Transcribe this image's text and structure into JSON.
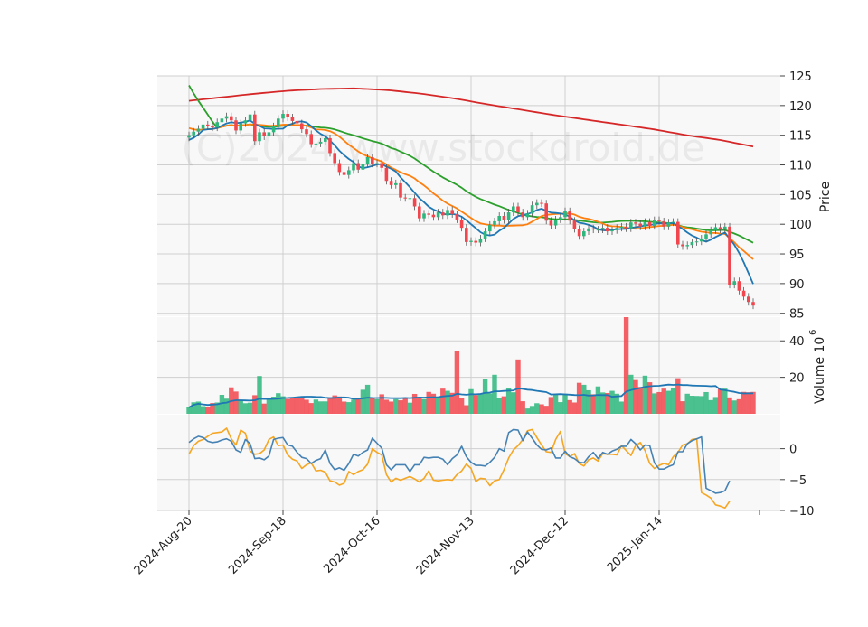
{
  "chart_data": {
    "type": "candlestick",
    "watermark": "(C)2024 www.stockdroid.de",
    "x_tick_labels": [
      "2024-Aug-20",
      "2024-Sep-18",
      "2024-Oct-16",
      "2024-Nov-13",
      "2024-Dec-12",
      "2025-Jan-14"
    ],
    "x_tick_sessions": [
      0,
      20,
      40,
      60,
      80,
      100
    ],
    "panels": {
      "price": {
        "ylabel": "Price",
        "ylim": [
          84.5,
          125
        ],
        "yticks": [
          85,
          90,
          95,
          100,
          105,
          110,
          115,
          120,
          125
        ]
      },
      "volume": {
        "ylabel": "Volume  10",
        "ylabel_exponent": "6",
        "ylim": [
          0,
          53
        ],
        "yticks": [
          20,
          40
        ]
      },
      "oscillator": {
        "ylim": [
          -10,
          5.5
        ],
        "yticks": [
          0,
          -5,
          -10
        ]
      }
    },
    "colors": {
      "up": "#2db77d",
      "down": "#f2464e",
      "ma_short": "#1f77b4",
      "ma_medium": "#ff7f0e",
      "ma_long": "#2ca02c",
      "ma_200": "#d62728",
      "volume_ma": "#1f77b4",
      "osc_a": "#4682b4",
      "osc_b": "#f5a623"
    },
    "close": [
      115.0,
      115.6,
      116.1,
      116.8,
      116.5,
      116.3,
      117.2,
      117.8,
      118.2,
      117.5,
      115.8,
      117.0,
      117.5,
      118.5,
      114.0,
      115.5,
      114.8,
      115.5,
      116.5,
      117.8,
      118.6,
      118.0,
      117.4,
      117.0,
      116.0,
      115.2,
      113.5,
      113.6,
      113.9,
      114.5,
      112.0,
      110.3,
      108.8,
      108.3,
      109.1,
      110.3,
      109.2,
      110.2,
      111.3,
      110.2,
      110.3,
      109.5,
      107.3,
      106.6,
      106.9,
      104.5,
      104.4,
      104.4,
      103.0,
      101.0,
      101.8,
      101.6,
      101.2,
      102.0,
      101.5,
      102.4,
      101.7,
      100.8,
      99.4,
      97.0,
      97.2,
      96.9,
      97.6,
      98.8,
      99.9,
      100.5,
      101.4,
      100.7,
      102.0,
      103.0,
      102.0,
      101.2,
      101.8,
      103.2,
      103.6,
      103.5,
      100.6,
      99.8,
      100.8,
      101.2,
      102.2,
      100.6,
      99.2,
      98.0,
      98.8,
      99.3,
      99.1,
      99.1,
      99.4,
      98.8,
      99.0,
      99.4,
      99.6,
      99.3,
      100.3,
      100.1,
      99.6,
      100.4,
      99.7,
      100.7,
      100.5,
      99.6,
      100.3,
      100.4,
      96.6,
      96.3,
      96.5,
      97.0,
      97.1,
      97.6,
      98.3,
      99.0,
      99.5,
      99.1,
      99.6,
      89.8,
      90.4,
      88.8,
      87.8,
      86.9,
      86.3
    ],
    "volume_millions": [
      3.5,
      6.3,
      6.7,
      4.2,
      3.6,
      5.9,
      6.2,
      10.4,
      8.3,
      14.5,
      12.2,
      7.5,
      5.8,
      6.1,
      10.2,
      20.7,
      5.6,
      8.4,
      9.4,
      11.3,
      9.6,
      8.1,
      8.9,
      8.8,
      8.6,
      7.7,
      5.9,
      7.8,
      6.8,
      6.8,
      9.0,
      10.1,
      9.5,
      6.7,
      6.4,
      7.8,
      8.3,
      13.2,
      15.9,
      8.6,
      8.0,
      10.7,
      7.7,
      6.7,
      8.0,
      7.4,
      8.8,
      6.1,
      10.9,
      9.2,
      8.1,
      12.0,
      11.0,
      8.8,
      13.8,
      12.6,
      11.5,
      34.6,
      8.5,
      4.7,
      13.5,
      10.3,
      11.1,
      18.9,
      11.2,
      21.4,
      8.5,
      9.6,
      14.2,
      11.8,
      29.8,
      6.9,
      2.9,
      4.3,
      5.8,
      5.2,
      4.4,
      9.2,
      10.4,
      6.4,
      11.0,
      7.5,
      6.2,
      17.0,
      15.9,
      12.9,
      10.7,
      15.0,
      11.7,
      11.4,
      12.6,
      11.0,
      6.7,
      53.0,
      21.4,
      18.5,
      14.7,
      20.9,
      17.3,
      11.2,
      11.9,
      13.8,
      12.6,
      14.3,
      19.5,
      6.9,
      11.0,
      9.9,
      9.8,
      9.7,
      11.9,
      7.5,
      9.2,
      13.7,
      13.8,
      9.0,
      7.3,
      8.0,
      12.0,
      11.8,
      12.0
    ],
    "volume_ma_millions": [
      9.0,
      9.3,
      9.2,
      9.5,
      9.0,
      9.1,
      10.4,
      11.0,
      10.9,
      11.5,
      11.3,
      11.8,
      12.0,
      12.0,
      12.4,
      12.8,
      13.3,
      12.9,
      12.9,
      12.7,
      12.5,
      12.4,
      12.4,
      12.6,
      12.8,
      12.6,
      13.0,
      12.8,
      12.6,
      12.6,
      12.4,
      12.5,
      12.8,
      13.1
    ],
    "volume_ma_start_session": 87,
    "oscillator_a": [
      1.0,
      1.6,
      2.0,
      1.8,
      1.2,
      1.0,
      1.1,
      1.4,
      1.6,
      1.2,
      -0.2,
      -0.6,
      1.5,
      0.8,
      -1.6,
      -1.5,
      -1.8,
      -1.2,
      1.5,
      1.7,
      1.8,
      0.6,
      0.4,
      -0.6,
      -1.4,
      -1.6,
      -2.4,
      -1.9,
      -1.6,
      -0.2,
      -2.4,
      -3.4,
      -3.1,
      -3.5,
      -2.4,
      -0.9,
      -1.2,
      -0.6,
      -0.2,
      1.7,
      0.9,
      0.1,
      -2.6,
      -3.4,
      -2.6,
      -2.6,
      -2.6,
      -3.7,
      -2.6,
      -2.6,
      -1.4,
      -1.5,
      -1.4,
      -1.4,
      -1.7,
      -2.6,
      -1.6,
      -1.0,
      0.4,
      -1.3,
      -2.2,
      -2.7,
      -2.7,
      -2.8,
      -2.2,
      -1.4,
      0.0,
      -0.4,
      2.6,
      3.1,
      3.0,
      1.3,
      2.7,
      1.7,
      0.6,
      -0.1,
      -0.2,
      0.1,
      -1.5,
      -1.5,
      -0.4,
      -1.3,
      -1.6,
      -2.2,
      -2.3,
      -1.3,
      -0.6,
      -1.6,
      -0.6,
      -0.9,
      -0.4,
      -0.1,
      0.4,
      0.4,
      1.5,
      0.8,
      -0.2,
      0.6,
      0.5,
      -2.3,
      -3.3,
      -3.3,
      -2.9,
      -2.6,
      -0.5,
      -0.5,
      0.8,
      1.3,
      1.6,
      1.9,
      -6.4,
      -6.8,
      -7.2,
      -7.1,
      -6.8,
      -5.2
    ],
    "oscillator_a_start_session": 0,
    "oscillator_b": [
      -0.9,
      0.5,
      1.2,
      1.5,
      2.0,
      2.5,
      2.6,
      2.7,
      3.3,
      1.6,
      0.6,
      3.0,
      2.5,
      -0.4,
      -0.9,
      -0.8,
      -0.2,
      1.5,
      1.9,
      0.5,
      0.6,
      -1.0,
      -1.7,
      -2.0,
      -3.2,
      -2.6,
      -2.3,
      -3.6,
      -3.5,
      -3.8,
      -5.2,
      -5.4,
      -5.9,
      -5.6,
      -3.7,
      -4.2,
      -3.7,
      -3.4,
      -2.5,
      0.0,
      -0.6,
      -1.0,
      -4.2,
      -5.4,
      -4.8,
      -5.1,
      -4.8,
      -4.5,
      -4.9,
      -5.4,
      -4.8,
      -3.6,
      -5.1,
      -5.2,
      -5.1,
      -5.0,
      -5.1,
      -4.2,
      -3.6,
      -2.5,
      -3.2,
      -5.3,
      -4.8,
      -4.9,
      -6.0,
      -5.2,
      -5.0,
      -3.4,
      -1.5,
      -0.2,
      0.5,
      1.5,
      2.9,
      3.1,
      1.8,
      0.6,
      -0.5,
      -0.6,
      1.5,
      2.8,
      -0.8,
      -1.3,
      -0.8,
      -2.4,
      -2.8,
      -1.8,
      -1.5,
      -2.0,
      -0.8,
      -0.9,
      -0.9,
      -1.0,
      0.5,
      -0.3,
      -1.1,
      0.5,
      1.0,
      -0.3,
      -2.4,
      -3.2,
      -2.7,
      -2.4,
      -2.6,
      -1.3,
      -0.6,
      0.6,
      0.8,
      1.5,
      1.6,
      -7.1,
      -7.5,
      -8.0,
      -9.1,
      -9.3,
      -9.6,
      -8.5
    ],
    "oscillator_b_start_session": 0
  }
}
